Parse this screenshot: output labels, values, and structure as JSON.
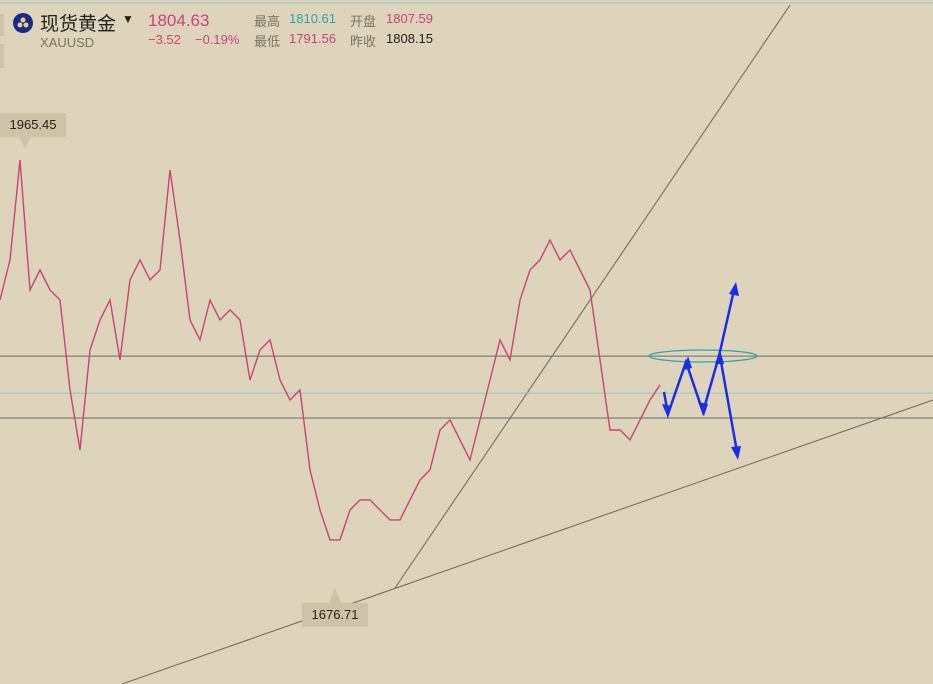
{
  "header": {
    "name": "现货黄金",
    "symbol": "XAUUSD",
    "price": 1804.63,
    "change": "−3.52",
    "change_pct": "−0.19%",
    "high_label": "最高",
    "high": 1810.61,
    "open_label": "开盘",
    "open": 1807.59,
    "low_label": "最低",
    "low": 1791.56,
    "prev_close_label": "昨收",
    "prev_close": 1808.15
  },
  "chart_data": {
    "type": "line",
    "color": "#c9447a",
    "values": [
      1865.7,
      1892.0,
      1957.6,
      1872.3,
      1885.4,
      1872.3,
      1865.7,
      1806.7,
      1767.3,
      1832.9,
      1852.6,
      1865.7,
      1826.4,
      1878.9,
      1892.0,
      1878.9,
      1885.4,
      1951.0,
      1905.1,
      1852.6,
      1839.5,
      1865.7,
      1852.6,
      1859.2,
      1852.6,
      1813.2,
      1832.9,
      1839.5,
      1813.2,
      1800.1,
      1806.7,
      1754.2,
      1727.9,
      1708.3,
      1708.3,
      1727.9,
      1734.5,
      1734.5,
      1727.9,
      1721.4,
      1721.4,
      1734.5,
      1747.6,
      1754.2,
      1780.4,
      1787.0,
      1773.9,
      1760.7,
      1787.0,
      1813.2,
      1839.5,
      1826.4,
      1865.7,
      1885.4,
      1892.0,
      1905.1,
      1892.0,
      1898.5,
      1885.4,
      1872.3,
      1826.4,
      1780.4,
      1780.4,
      1773.9,
      1787.0,
      1800.1,
      1810.0
    ],
    "ylim": [
      1613.7,
      2062.6
    ],
    "hlines": [
      {
        "value": 1828.9,
        "color": "#6b6b6b"
      },
      {
        "value": 1804.63,
        "color": "#8fc9c9"
      },
      {
        "value": 1788.3,
        "color": "#6b6b6b"
      }
    ],
    "annotations": [
      {
        "value": 1965.45,
        "index": 2.5,
        "side": "above"
      },
      {
        "value": 1676.71,
        "index": 33.5,
        "side": "below"
      }
    ]
  }
}
